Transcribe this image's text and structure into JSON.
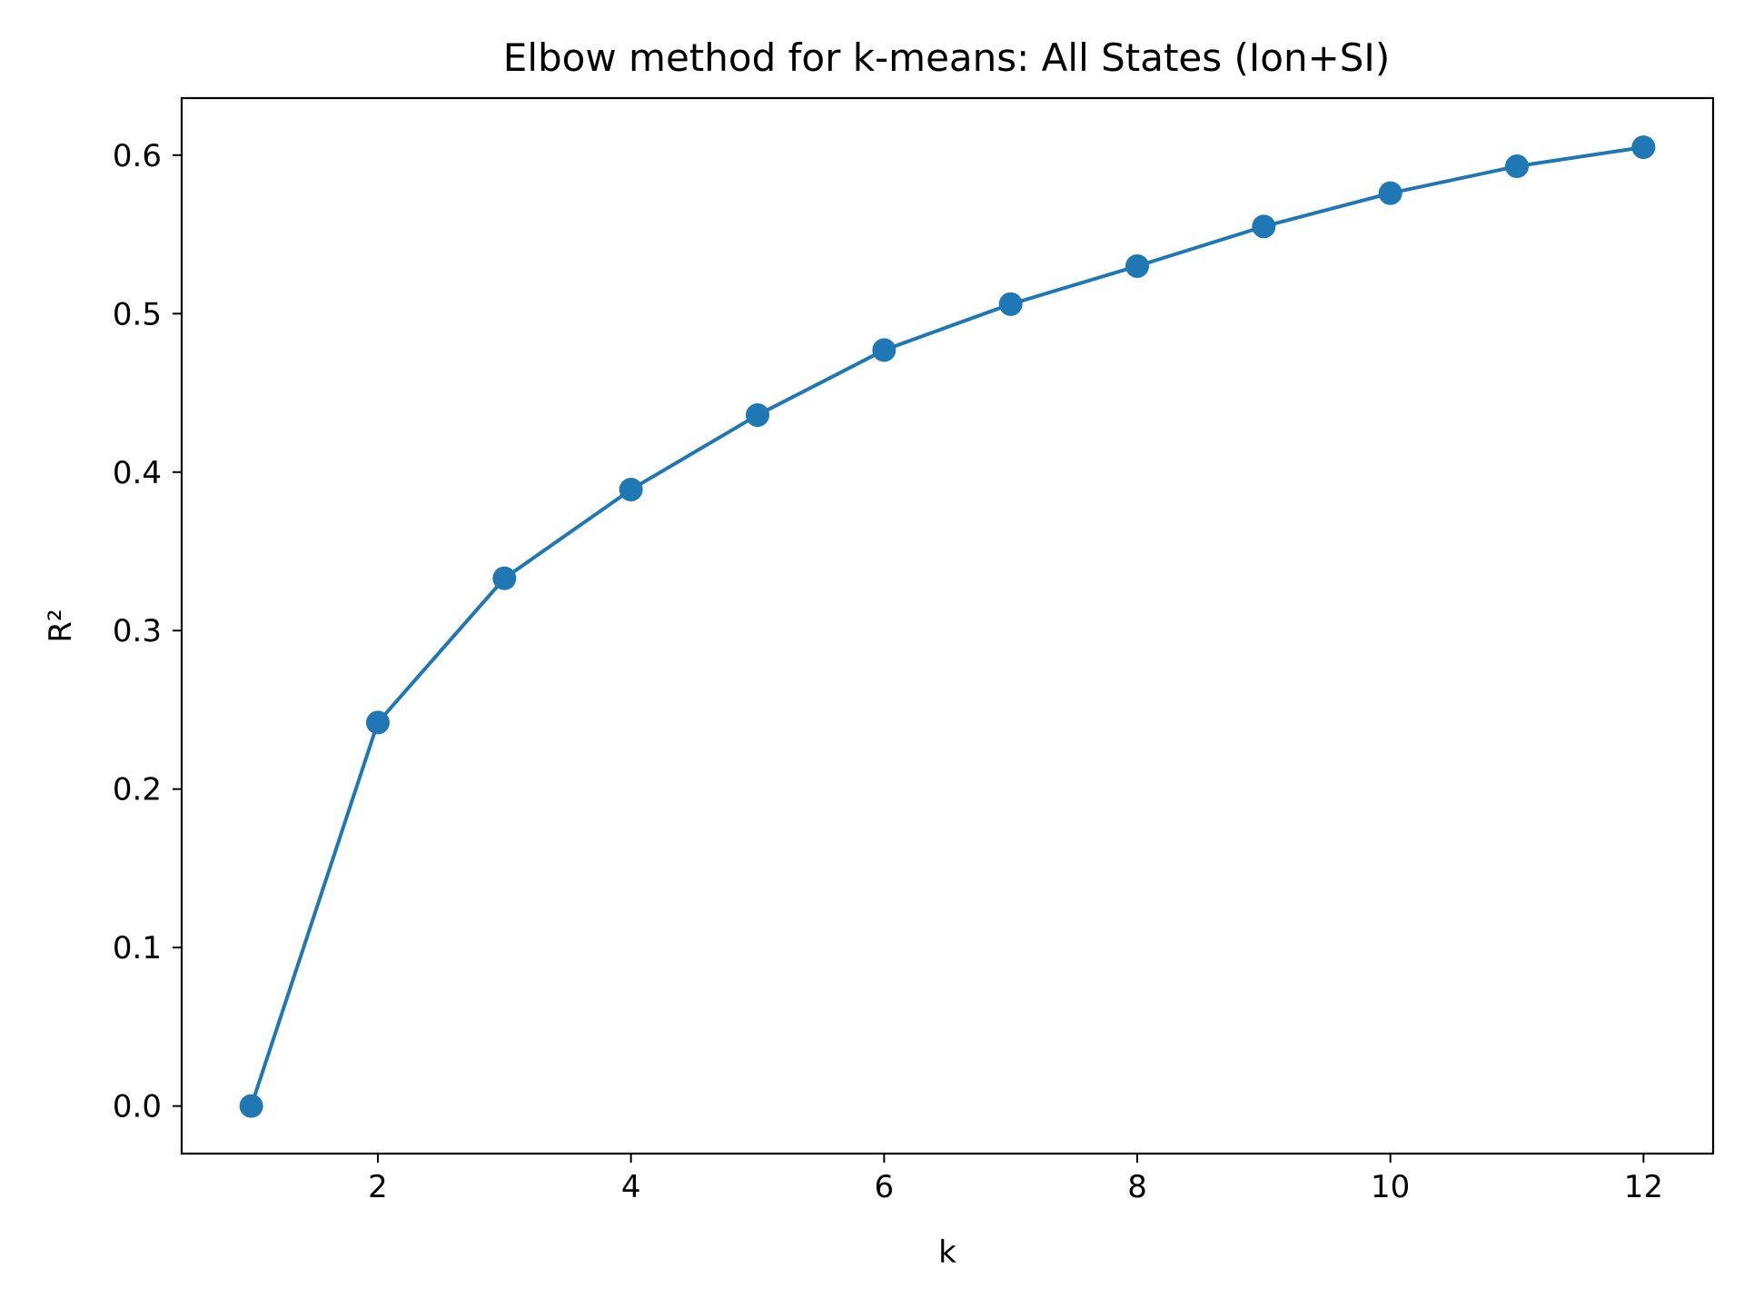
{
  "chart_data": {
    "type": "line",
    "title": "Elbow method for k-means: All States (Ion+SI)",
    "xlabel": "k",
    "ylabel": "R²",
    "xlim": [
      0.45,
      12.55
    ],
    "ylim": [
      -0.03,
      0.636
    ],
    "x_ticks": [
      2,
      4,
      6,
      8,
      10,
      12
    ],
    "y_ticks": [
      0.0,
      0.1,
      0.2,
      0.3,
      0.4,
      0.5,
      0.6
    ],
    "x_tick_labels": [
      "2",
      "4",
      "6",
      "8",
      "10",
      "12"
    ],
    "y_tick_labels": [
      "0.0",
      "0.1",
      "0.2",
      "0.3",
      "0.4",
      "0.5",
      "0.6"
    ],
    "grid": false,
    "legend": "none",
    "marker": "circle",
    "series": [
      {
        "color": "#1f77b4",
        "x": [
          1,
          2,
          3,
          4,
          5,
          6,
          7,
          8,
          9,
          10,
          11,
          12
        ],
        "y": [
          0.0,
          0.242,
          0.333,
          0.389,
          0.436,
          0.477,
          0.506,
          0.53,
          0.555,
          0.576,
          0.593,
          0.605
        ]
      }
    ]
  }
}
